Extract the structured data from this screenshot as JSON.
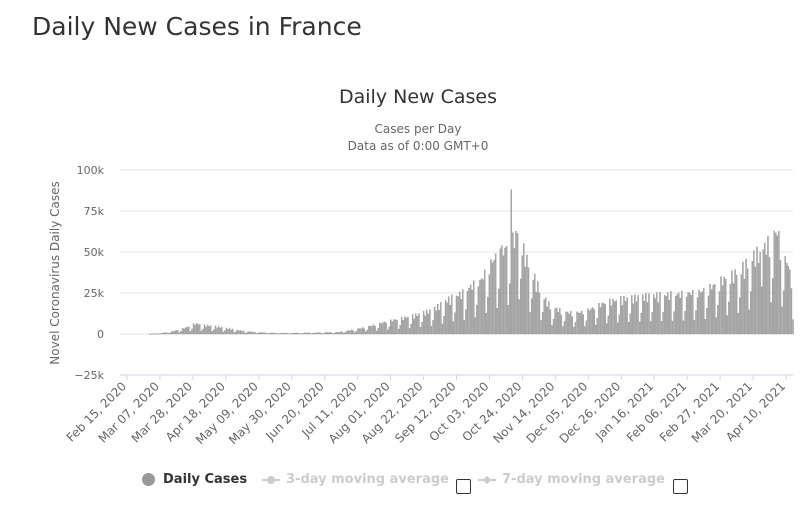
{
  "page": {
    "title": "Daily New Cases in France"
  },
  "chart_data": {
    "type": "bar",
    "title": "Daily New Cases",
    "subtitle_lines": [
      "Cases per Day",
      "Data as of 0:00 GMT+0"
    ],
    "ylabel": "Novel Coronavirus Daily Cases",
    "xlabel": "",
    "ylim": [
      -25000,
      100000
    ],
    "yticks": [
      {
        "value": 100000,
        "label": "100k"
      },
      {
        "value": 75000,
        "label": "75k"
      },
      {
        "value": 50000,
        "label": "50k"
      },
      {
        "value": 25000,
        "label": "25k"
      },
      {
        "value": 0,
        "label": "0"
      },
      {
        "value": -25000,
        "label": "−25k"
      }
    ],
    "xtick_labels": [
      "Feb 15, 2020",
      "Mar 07, 2020",
      "Mar 28, 2020",
      "Apr 18, 2020",
      "May 09, 2020",
      "May 30, 2020",
      "Jun 20, 2020",
      "Jul 11, 2020",
      "Aug 01, 2020",
      "Aug 22, 2020",
      "Sep 12, 2020",
      "Oct 03, 2020",
      "Oct 24, 2020",
      "Nov 14, 2020",
      "Dec 05, 2020",
      "Dec 26, 2020",
      "Jan 16, 2021",
      "Feb 06, 2021",
      "Feb 27, 2021",
      "Mar 20, 2021",
      "Apr 10, 2021"
    ],
    "x_range_days": [
      0,
      430
    ],
    "series": [
      {
        "name": "Daily Cases",
        "envelope": {
          "days": [
            0,
            18,
            26,
            34,
            42,
            48,
            54,
            60,
            70,
            80,
            90,
            100,
            110,
            125,
            140,
            150,
            160,
            170,
            180,
            190,
            200,
            205,
            210,
            215,
            220,
            225,
            230,
            238,
            242,
            245,
            248,
            252,
            255,
            258,
            261,
            265,
            270,
            275,
            280,
            285,
            290,
            295,
            300,
            305,
            310,
            320,
            330,
            340,
            350,
            360,
            370,
            375,
            380,
            385,
            390,
            395,
            400,
            405,
            410,
            414,
            418,
            421,
            424,
            427,
            430
          ],
          "values": [
            0,
            0,
            300,
            1500,
            3500,
            6000,
            5000,
            4500,
            3000,
            1500,
            800,
            500,
            500,
            700,
            1000,
            2500,
            4500,
            7000,
            9000,
            11000,
            14000,
            17000,
            20000,
            22000,
            24000,
            28000,
            30000,
            42000,
            46000,
            48000,
            50000,
            55000,
            60000,
            48000,
            40000,
            32000,
            22000,
            16000,
            14000,
            12500,
            12000,
            12500,
            14000,
            16000,
            18000,
            20000,
            21000,
            22000,
            22500,
            23000,
            24000,
            26000,
            28000,
            31000,
            33000,
            36000,
            40000,
            45000,
            48000,
            52000,
            58000,
            55000,
            44000,
            40000,
            25000
          ]
        },
        "spikes": [
          {
            "day": 250,
            "value": 88000
          },
          {
            "day": 243,
            "value": 52000
          },
          {
            "day": 420,
            "value": 60000
          },
          {
            "day": 409,
            "value": 50000
          }
        ]
      },
      {
        "name": "3-day moving average"
      },
      {
        "name": "7-day moving average"
      }
    ],
    "legend": [
      {
        "label": "Daily Cases",
        "active": true
      },
      {
        "label": "3-day moving average",
        "active": false
      },
      {
        "label": "7-day moving average",
        "active": false
      }
    ],
    "colors": {
      "bars": "#aaaaaa",
      "bar_stroke": "#888888",
      "grid": "#e6e6e6",
      "axis": "#ccd6eb",
      "muted": "#cccccc"
    }
  }
}
